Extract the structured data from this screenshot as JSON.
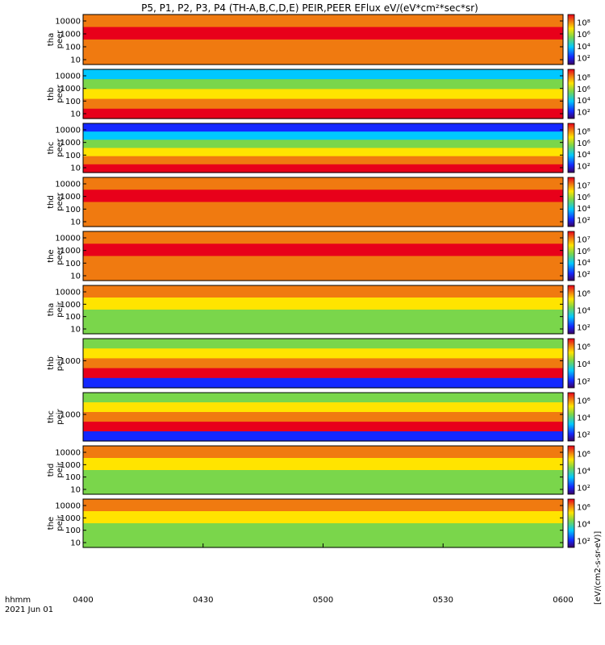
{
  "title": "P5, P1, P2, P3, P4 (TH-A,B,C,D,E) PEIR,PEER EFlux eV/(eV*cm²*sec*sr)",
  "footer": {
    "label1": "hhmm",
    "label2": "2021 Jun 01"
  },
  "colorbar_label": "[eV/(cm2-s-sr-eV)]",
  "colors": {
    "red": "#e8001a",
    "orange": "#f07a10",
    "yellow": "#ffe400",
    "green": "#7ad64b",
    "cyan": "#00c8ff",
    "blue": "#1428ff",
    "navy": "#0a0a80"
  },
  "chart_data": {
    "type": "heatmap",
    "x_ticks": [
      "0400",
      "0430",
      "0500",
      "0530",
      "0600"
    ],
    "x_range": [
      0,
      120
    ],
    "panels": [
      {
        "probe": "tha",
        "product": "peer",
        "ylabel": [
          "tha",
          "peer"
        ],
        "y_ticks": [
          "10000",
          "1000",
          "100",
          "10"
        ],
        "cbar_ticks": [
          "10⁸",
          "10⁶",
          "10⁴",
          "10²"
        ],
        "palette": [
          "orange",
          "red",
          "orange",
          "orange"
        ]
      },
      {
        "probe": "thb",
        "product": "peer",
        "ylabel": [
          "thb",
          "peer"
        ],
        "y_ticks": [
          "10000",
          "1000",
          "100",
          "10"
        ],
        "cbar_ticks": [
          "10⁸",
          "10⁶",
          "10⁴",
          "10²"
        ],
        "palette": [
          "cyan",
          "green",
          "yellow",
          "orange",
          "red"
        ]
      },
      {
        "probe": "thc",
        "product": "peer",
        "ylabel": [
          "thc",
          "peer"
        ],
        "y_ticks": [
          "10000",
          "1000",
          "100",
          "10"
        ],
        "cbar_ticks": [
          "10⁸",
          "10⁶",
          "10⁴",
          "10²"
        ],
        "palette": [
          "blue",
          "cyan",
          "green",
          "yellow",
          "orange",
          "red"
        ]
      },
      {
        "probe": "thd",
        "product": "peer",
        "ylabel": [
          "thd",
          "peer"
        ],
        "y_ticks": [
          "10000",
          "1000",
          "100",
          "10"
        ],
        "cbar_ticks": [
          "10⁷",
          "10⁶",
          "10⁴",
          "10²"
        ],
        "palette": [
          "orange",
          "red",
          "orange",
          "orange"
        ]
      },
      {
        "probe": "the",
        "product": "peer",
        "ylabel": [
          "the",
          "peer"
        ],
        "y_ticks": [
          "10000",
          "1000",
          "100",
          "10"
        ],
        "cbar_ticks": [
          "10⁷",
          "10⁶",
          "10⁴",
          "10²"
        ],
        "palette": [
          "orange",
          "red",
          "orange",
          "orange"
        ]
      },
      {
        "probe": "tha",
        "product": "peir",
        "ylabel": [
          "tha",
          "peir"
        ],
        "y_ticks": [
          "10000",
          "1000",
          "100",
          "10"
        ],
        "cbar_ticks": [
          "10⁶",
          "10⁴",
          "10²"
        ],
        "palette": [
          "orange",
          "yellow",
          "green",
          "green"
        ]
      },
      {
        "probe": "thb",
        "product": "peir",
        "ylabel": [
          "thb",
          "peir"
        ],
        "y_ticks": [
          "1000"
        ],
        "cbar_ticks": [
          "10⁶",
          "10⁴",
          "10²"
        ],
        "palette": [
          "green",
          "yellow",
          "orange",
          "red",
          "blue"
        ]
      },
      {
        "probe": "thc",
        "product": "peir",
        "ylabel": [
          "thc",
          "peir"
        ],
        "y_ticks": [
          "1000"
        ],
        "cbar_ticks": [
          "10⁶",
          "10⁴",
          "10²"
        ],
        "palette": [
          "green",
          "yellow",
          "orange",
          "red",
          "blue"
        ]
      },
      {
        "probe": "thd",
        "product": "peir",
        "ylabel": [
          "thd",
          "peir"
        ],
        "y_ticks": [
          "10000",
          "1000",
          "100",
          "10"
        ],
        "cbar_ticks": [
          "10⁶",
          "10⁴",
          "10²"
        ],
        "palette": [
          "orange",
          "yellow",
          "green",
          "green"
        ]
      },
      {
        "probe": "the",
        "product": "peir",
        "ylabel": [
          "the",
          "peir"
        ],
        "y_ticks": [
          "10000",
          "1000",
          "100",
          "10"
        ],
        "cbar_ticks": [
          "10⁶",
          "10⁴",
          "10²"
        ],
        "palette": [
          "orange",
          "yellow",
          "green",
          "green"
        ]
      }
    ]
  }
}
